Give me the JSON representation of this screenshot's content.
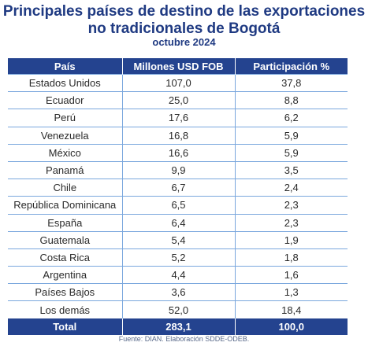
{
  "title": "Principales países de destino de las exportaciones no tradicionales de Bogotá",
  "subtitle": "octubre 2024",
  "headers": [
    "País",
    "Millones USD FOB",
    "Participación %"
  ],
  "rows": [
    [
      "Estados Unidos",
      "107,0",
      "37,8"
    ],
    [
      "Ecuador",
      "25,0",
      "8,8"
    ],
    [
      "Perú",
      "17,6",
      "6,2"
    ],
    [
      "Venezuela",
      "16,8",
      "5,9"
    ],
    [
      "México",
      "16,6",
      "5,9"
    ],
    [
      "Panamá",
      "9,9",
      "3,5"
    ],
    [
      "Chile",
      "6,7",
      "2,4"
    ],
    [
      "República Dominicana",
      "6,5",
      "2,3"
    ],
    [
      "España",
      "6,4",
      "2,3"
    ],
    [
      "Guatemala",
      "5,4",
      "1,9"
    ],
    [
      "Costa Rica",
      "5,2",
      "1,8"
    ],
    [
      "Argentina",
      "4,4",
      "1,6"
    ],
    [
      "Países Bajos",
      "3,6",
      "1,3"
    ],
    [
      "Los demás",
      "52,0",
      "18,4"
    ]
  ],
  "total": [
    "Total",
    "283,1",
    "100,0"
  ],
  "source": "Fuente: DIAN. Elaboración SDDE-ODEB.",
  "colors": {
    "header_bg": "#24438f",
    "title": "#1f3a82",
    "row_border": "#7aa7dd"
  }
}
